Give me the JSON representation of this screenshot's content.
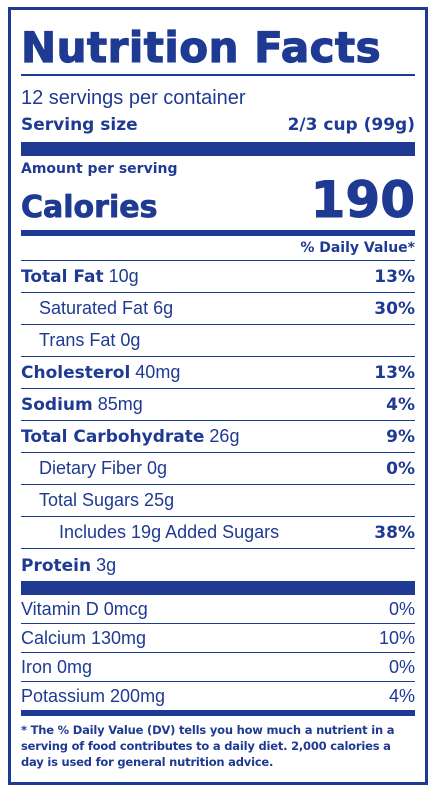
{
  "label": {
    "title": "Nutrition Facts",
    "servings_per_container": "12 servings per container",
    "serving_size_label": "Serving size",
    "serving_size_value": "2/3 cup (99g)",
    "amount_per_serving": "Amount per serving",
    "calories_label": "Calories",
    "calories_value": "190",
    "dv_header": "% Daily Value*"
  },
  "nutrients": [
    {
      "name": "Total Fat",
      "amount": "10g",
      "dv": "13%"
    },
    {
      "name": "Saturated Fat 6g",
      "dv": "30%"
    },
    {
      "name": "Trans Fat 0g",
      "dv": ""
    },
    {
      "name": "Cholesterol",
      "amount": "40mg",
      "dv": "13%"
    },
    {
      "name": "Sodium",
      "amount": "85mg",
      "dv": "4%"
    },
    {
      "name": "Total Carbohydrate",
      "amount": "26g",
      "dv": "9%"
    },
    {
      "name": "Dietary Fiber 0g",
      "dv": "0%"
    },
    {
      "name": "Total Sugars 25g",
      "dv": ""
    },
    {
      "name": "Includes 19g Added Sugars",
      "dv": "38%"
    },
    {
      "name": "Protein",
      "amount": "3g",
      "dv": ""
    }
  ],
  "vitamins": [
    {
      "name": "Vitamin D 0mcg",
      "dv": "0%"
    },
    {
      "name": "Calcium 130mg",
      "dv": "10%"
    },
    {
      "name": "Iron 0mg",
      "dv": "0%"
    },
    {
      "name": "Potassium 200mg",
      "dv": "4%"
    }
  ],
  "footnote": "* The % Daily Value (DV) tells you how much a nutrient in a serving of food contributes to a daily diet. 2,000 calories a day is used for general nutrition advice.",
  "colors": {
    "ink": "#1f3a93",
    "background": "#ffffff"
  }
}
